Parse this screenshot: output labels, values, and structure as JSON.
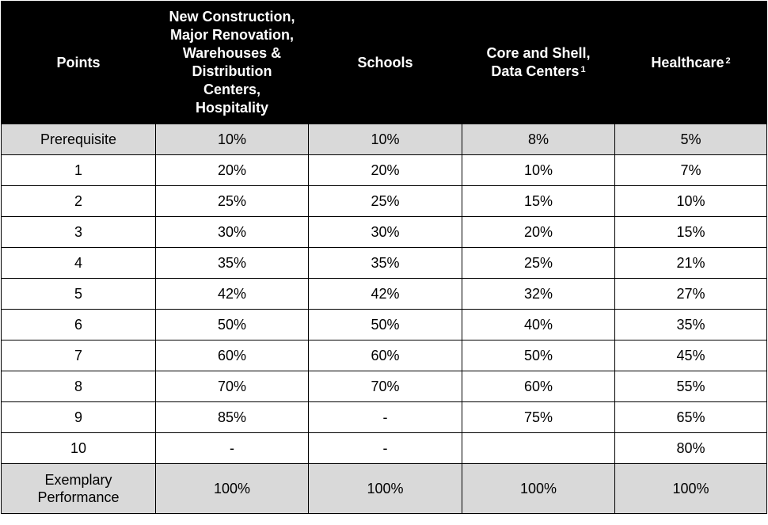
{
  "table": {
    "headers": [
      {
        "lines": [
          "Points"
        ],
        "sup": ""
      },
      {
        "lines": [
          "New Construction,",
          "Major Renovation,",
          "Warehouses &",
          "Distribution",
          "Centers,",
          "Hospitality"
        ],
        "sup": ""
      },
      {
        "lines": [
          "Schools"
        ],
        "sup": ""
      },
      {
        "lines": [
          "Core and Shell,",
          "Data Centers"
        ],
        "sup": "1"
      },
      {
        "lines": [
          "Healthcare"
        ],
        "sup": "2"
      }
    ],
    "rows": [
      {
        "points": "Prerequisite",
        "new_construction": "10%",
        "schools": "10%",
        "core_and_shell": "8%",
        "healthcare": "5%",
        "shaded": true
      },
      {
        "points": "1",
        "new_construction": "20%",
        "schools": "20%",
        "core_and_shell": "10%",
        "healthcare": "7%",
        "shaded": false
      },
      {
        "points": "2",
        "new_construction": "25%",
        "schools": "25%",
        "core_and_shell": "15%",
        "healthcare": "10%",
        "shaded": false
      },
      {
        "points": "3",
        "new_construction": "30%",
        "schools": "30%",
        "core_and_shell": "20%",
        "healthcare": "15%",
        "shaded": false
      },
      {
        "points": "4",
        "new_construction": "35%",
        "schools": "35%",
        "core_and_shell": "25%",
        "healthcare": "21%",
        "shaded": false
      },
      {
        "points": "5",
        "new_construction": "42%",
        "schools": "42%",
        "core_and_shell": "32%",
        "healthcare": "27%",
        "shaded": false
      },
      {
        "points": "6",
        "new_construction": "50%",
        "schools": "50%",
        "core_and_shell": "40%",
        "healthcare": "35%",
        "shaded": false
      },
      {
        "points": "7",
        "new_construction": "60%",
        "schools": "60%",
        "core_and_shell": "50%",
        "healthcare": "45%",
        "shaded": false
      },
      {
        "points": "8",
        "new_construction": "70%",
        "schools": "70%",
        "core_and_shell": "60%",
        "healthcare": "55%",
        "shaded": false
      },
      {
        "points": "9",
        "new_construction": "85%",
        "schools": "-",
        "core_and_shell": "75%",
        "healthcare": "65%",
        "shaded": false
      },
      {
        "points": "10",
        "new_construction": "-",
        "schools": "-",
        "core_and_shell": "",
        "healthcare": "80%",
        "shaded": false
      }
    ],
    "footer_row": {
      "points_lines": [
        "Exemplary",
        "Performance"
      ],
      "new_construction": "100%",
      "schools": "100%",
      "core_and_shell": "100%",
      "healthcare": "100%"
    }
  }
}
